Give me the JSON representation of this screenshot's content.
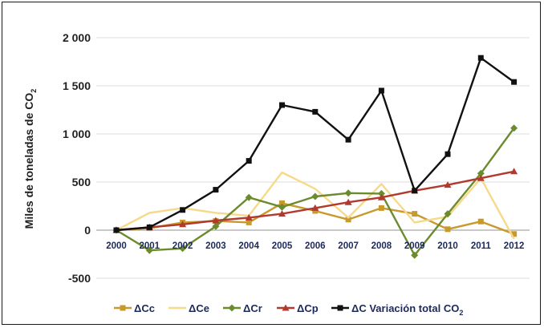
{
  "chart_data": {
    "type": "line",
    "ylabel": "Miles de toneladas de CO",
    "ylabel_sub": "2",
    "ylim": [
      -500,
      2000
    ],
    "yticks": [
      {
        "value": 2000,
        "label": "2 000"
      },
      {
        "value": 1500,
        "label": "1 500"
      },
      {
        "value": 1000,
        "label": "1 000"
      },
      {
        "value": 500,
        "label": "500"
      },
      {
        "value": 0,
        "label": "0"
      },
      {
        "value": -500,
        "label": "-500"
      }
    ],
    "x": [
      "2000",
      "2001",
      "2002",
      "2003",
      "2004",
      "2005",
      "2006",
      "2007",
      "2008",
      "2009",
      "2010",
      "2011",
      "2012"
    ],
    "grid": true,
    "legend_position": "bottom",
    "series": [
      {
        "name": "ΔCc",
        "sub": "",
        "color": "#c89a2e",
        "marker": "square",
        "values": [
          0,
          20,
          80,
          95,
          80,
          280,
          200,
          110,
          230,
          170,
          10,
          90,
          -40
        ]
      },
      {
        "name": "ΔCe",
        "sub": "",
        "color": "#f6d989",
        "marker": "none",
        "values": [
          0,
          180,
          230,
          180,
          150,
          600,
          430,
          130,
          480,
          80,
          140,
          540,
          -90
        ]
      },
      {
        "name": "ΔCr",
        "sub": "",
        "color": "#6b8b2e",
        "marker": "diamond",
        "values": [
          0,
          -210,
          -190,
          40,
          340,
          240,
          350,
          385,
          380,
          -260,
          170,
          590,
          1060
        ]
      },
      {
        "name": "ΔCp",
        "sub": "",
        "color": "#b03a2e",
        "marker": "triangle",
        "values": [
          0,
          30,
          60,
          100,
          130,
          170,
          230,
          290,
          340,
          410,
          470,
          540,
          610
        ]
      },
      {
        "name": "ΔC Variación total CO",
        "sub": "2",
        "color": "#111111",
        "marker": "square",
        "values": [
          0,
          30,
          210,
          420,
          720,
          1300,
          1230,
          940,
          1450,
          410,
          790,
          1790,
          1540
        ]
      }
    ]
  }
}
